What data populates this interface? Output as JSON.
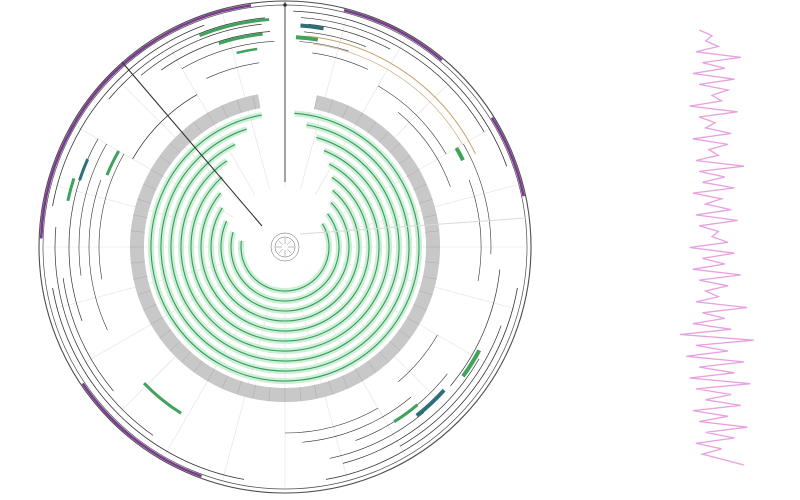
{
  "figure": {
    "kind": "circular-genome-visualization",
    "colors": {
      "background": "#ffffff",
      "outer_ring": "#4d4d4d",
      "outer_track_accent": "#7a3a8f",
      "feature_green": "#3fa35b",
      "feature_teal": "#2e6f7a",
      "feature_dark": "#333333",
      "gray_band": "#c8c8c8",
      "gray_band_tick": "#a9a9a9",
      "spiral_core": "#2f9e5a",
      "spiral_halo": "#cfeed7",
      "orange_track": "#c9a36a",
      "faint_lines": "#d9d9d9",
      "side_plot_line": "#e8a0e0"
    }
  },
  "chart_data": {
    "type": "line",
    "orientation": "vertical",
    "title": "",
    "xlabel": "",
    "ylabel": "",
    "grid": false,
    "legend": "none",
    "xlim": [
      0,
      1
    ],
    "ylim": [
      0,
      1
    ],
    "x": [
      0.62,
      0.7,
      0.66,
      0.74,
      0.6,
      0.88,
      0.64,
      0.78,
      0.58,
      0.84,
      0.62,
      0.8,
      0.7,
      0.76,
      0.56,
      0.86,
      0.62,
      0.72,
      0.66,
      0.82,
      0.58,
      0.8,
      0.68,
      0.74,
      0.6,
      0.9,
      0.62,
      0.78,
      0.64,
      0.84,
      0.58,
      0.76,
      0.66,
      0.82,
      0.6,
      0.86,
      0.62,
      0.74,
      0.7,
      0.8,
      0.56,
      0.84,
      0.64,
      0.78,
      0.58,
      0.88,
      0.62,
      0.8,
      0.66,
      0.74,
      0.6,
      0.92,
      0.64,
      0.78,
      0.58,
      0.82,
      0.5,
      0.96,
      0.6,
      0.8,
      0.54,
      0.9,
      0.62,
      0.84,
      0.56,
      0.94,
      0.6,
      0.82,
      0.66,
      0.88,
      0.58,
      0.8,
      0.62,
      0.92,
      0.66,
      0.84,
      0.6,
      0.76,
      0.64,
      0.9
    ],
    "y": [
      0.0,
      0.013,
      0.025,
      0.038,
      0.05,
      0.063,
      0.075,
      0.088,
      0.1,
      0.113,
      0.125,
      0.138,
      0.15,
      0.163,
      0.175,
      0.188,
      0.2,
      0.213,
      0.225,
      0.238,
      0.25,
      0.263,
      0.275,
      0.288,
      0.3,
      0.313,
      0.325,
      0.338,
      0.35,
      0.363,
      0.375,
      0.388,
      0.4,
      0.413,
      0.425,
      0.438,
      0.45,
      0.463,
      0.475,
      0.488,
      0.5,
      0.513,
      0.525,
      0.538,
      0.55,
      0.563,
      0.575,
      0.588,
      0.6,
      0.613,
      0.625,
      0.638,
      0.65,
      0.663,
      0.675,
      0.688,
      0.7,
      0.713,
      0.725,
      0.738,
      0.75,
      0.763,
      0.775,
      0.788,
      0.8,
      0.813,
      0.825,
      0.838,
      0.85,
      0.863,
      0.875,
      0.888,
      0.9,
      0.913,
      0.925,
      0.938,
      0.95,
      0.963,
      0.975,
      1.0
    ]
  }
}
